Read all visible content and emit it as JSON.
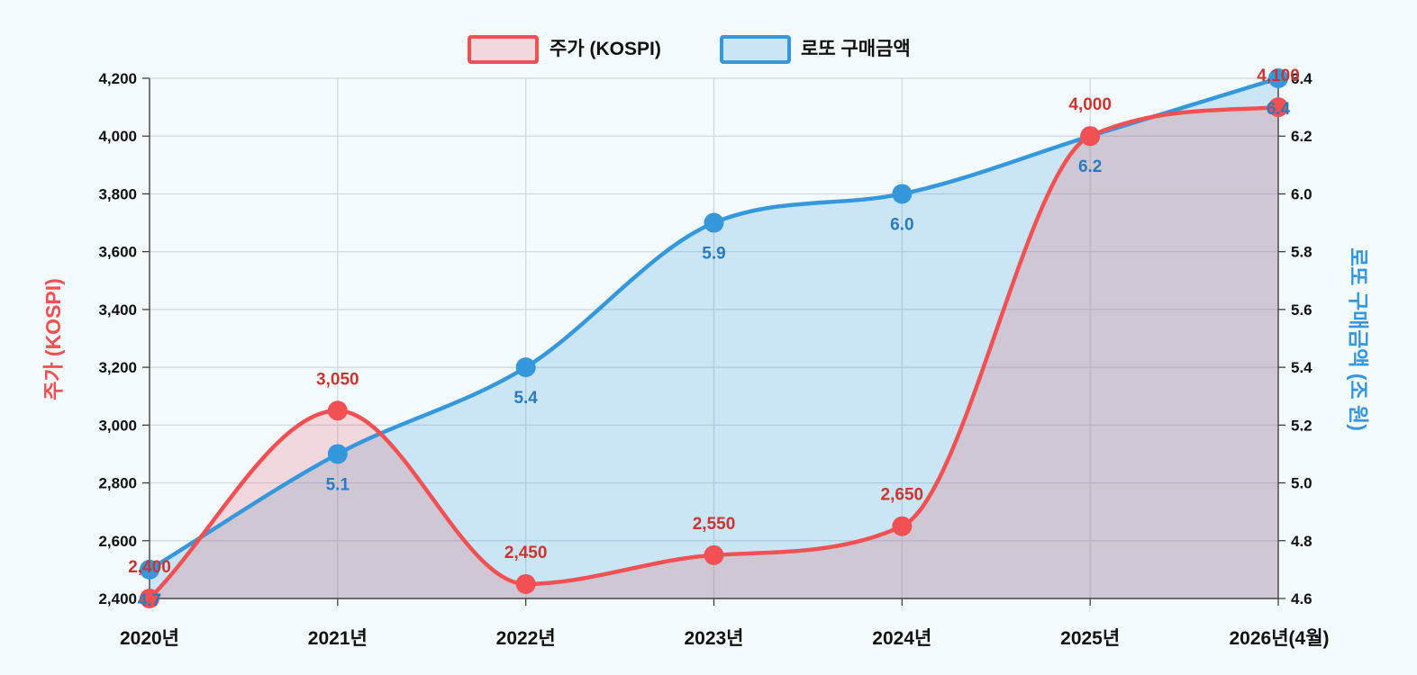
{
  "colors": {
    "kospi": "#f25053",
    "kospi_fill": "rgba(242,80,83,0.20)",
    "kospi_label": "#c9362f",
    "lotto": "#3698dc",
    "lotto_fill": "rgba(54,152,220,0.22)",
    "lotto_label": "#2a7bbd",
    "grid": "#cfd8de",
    "background": "#f3fbfe"
  },
  "legend": {
    "kospi_label": "주가 (KOSPI)",
    "lotto_label": "로또 구매금액"
  },
  "chart_data": {
    "type": "line",
    "categories": [
      "2020년",
      "2021년",
      "2022년",
      "2023년",
      "2024년",
      "2025년",
      "2026년(4월)"
    ],
    "series": [
      {
        "name": "주가 (KOSPI)",
        "axis": "left",
        "values": [
          2400,
          3050,
          2450,
          2550,
          2650,
          4000,
          4100
        ],
        "labels": [
          "2,400",
          "3,050",
          "2,450",
          "2,550",
          "2,650",
          "4,000",
          "4,100"
        ]
      },
      {
        "name": "로또 구매금액",
        "axis": "right",
        "values": [
          4.7,
          5.1,
          5.4,
          5.9,
          6.0,
          6.2,
          6.4
        ],
        "labels": [
          "4.7",
          "5.1",
          "5.4",
          "5.9",
          "6.0",
          "6.2",
          "6.4"
        ]
      }
    ],
    "y_left": {
      "label": "주가 (KOSPI)",
      "range": [
        2400,
        4200
      ],
      "ticks": [
        "2,400",
        "2,600",
        "2,800",
        "3,000",
        "3,200",
        "3,400",
        "3,600",
        "3,800",
        "4,000",
        "4,200"
      ]
    },
    "y_right": {
      "label": "로또 구매금액 (조 원)",
      "range": [
        4.6,
        6.4
      ],
      "ticks": [
        "4.6",
        "4.8",
        "5.0",
        "5.2",
        "5.4",
        "5.6",
        "5.8",
        "6.0",
        "6.2",
        "6.4"
      ]
    },
    "grid": true,
    "legend_position": "top-center",
    "filled": true,
    "smooth": true
  }
}
